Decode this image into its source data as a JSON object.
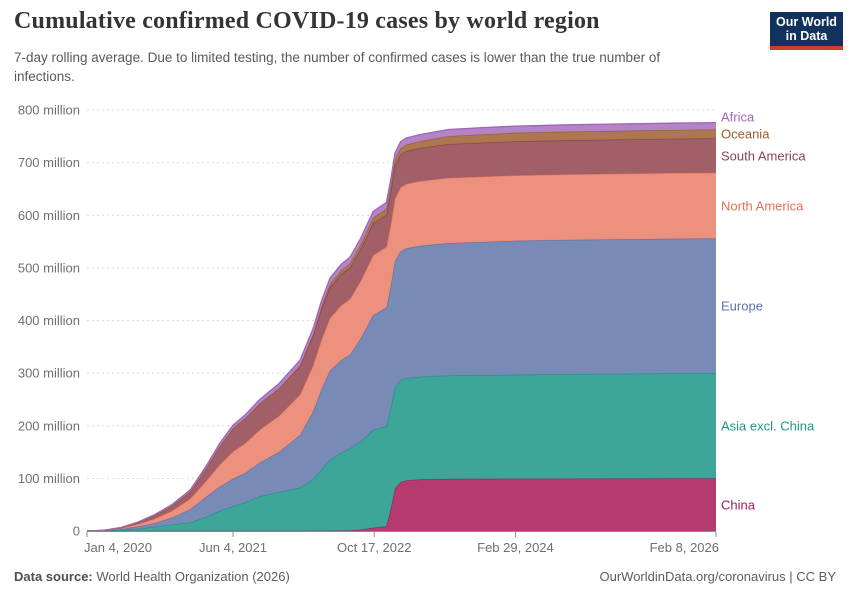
{
  "header": {
    "title": "Cumulative confirmed COVID-19 cases by world region",
    "subtitle": "7-day rolling average. Due to limited testing, the number of confirmed cases is lower than the true number of infections."
  },
  "logo": {
    "line1": "Our World",
    "line2": "in Data",
    "bg_color": "#12325e",
    "bar_color": "#cf3a31"
  },
  "footer": {
    "source_label": "Data source:",
    "source_text": " World Health Organization (2026)",
    "right_text": "OurWorldinData.org/coronavirus | CC BY"
  },
  "chart_data": {
    "type": "area",
    "stacked": true,
    "grid": "dashed-horizontal",
    "legend_position": "right",
    "ylim": [
      0,
      800
    ],
    "y_unit": "cases",
    "y_ticks": [
      {
        "value": 0,
        "label": "0"
      },
      {
        "value": 100,
        "label": "100 million"
      },
      {
        "value": 200,
        "label": "200 million"
      },
      {
        "value": 300,
        "label": "300 million"
      },
      {
        "value": 400,
        "label": "400 million"
      },
      {
        "value": 500,
        "label": "500 million"
      },
      {
        "value": 600,
        "label": "600 million"
      },
      {
        "value": 700,
        "label": "700 million"
      },
      {
        "value": 800,
        "label": "800 million"
      }
    ],
    "x_axis_note": "days since Jan 4, 2020",
    "x_max": 2227,
    "x_ticks": [
      {
        "day": 0,
        "label": "Jan 4, 2020"
      },
      {
        "day": 517,
        "label": "Jun 4, 2021"
      },
      {
        "day": 1017,
        "label": "Oct 17, 2022"
      },
      {
        "day": 1517,
        "label": "Feb 29, 2024"
      },
      {
        "day": 2227,
        "label": "Feb 8, 2026"
      }
    ],
    "x": [
      0,
      60,
      120,
      180,
      240,
      300,
      365,
      420,
      470,
      517,
      560,
      613,
      680,
      754,
      800,
      830,
      860,
      900,
      931,
      970,
      1013,
      1045,
      1060,
      1075,
      1090,
      1110,
      1130,
      1180,
      1280,
      1400,
      1517,
      1700,
      1900,
      2060,
      2227
    ],
    "values_unit": "million cumulative confirmed cases",
    "series": [
      {
        "name": "China",
        "fill": "#b23368",
        "line": "#9e2063",
        "values": [
          0,
          0.1,
          0.1,
          0.1,
          0.1,
          0.1,
          0.1,
          0.1,
          0.1,
          0.1,
          0.1,
          0.1,
          0.1,
          0.2,
          0.3,
          0.4,
          0.5,
          0.8,
          1,
          2.5,
          6,
          8,
          9,
          40,
          80,
          93,
          96,
          98,
          99,
          99.2,
          99.4,
          99.6,
          99.7,
          99.9,
          100
        ]
      },
      {
        "name": "Asia excl. China",
        "fill": "#35a294",
        "line": "#1f968a",
        "values": [
          0,
          0.3,
          1.5,
          4,
          8,
          12,
          16,
          26,
          38,
          47,
          54,
          66,
          74,
          82,
          98,
          116,
          134,
          148,
          156,
          168,
          186,
          189,
          190,
          191,
          192,
          193,
          194,
          195,
          196.5,
          197,
          197.5,
          198.5,
          199.2,
          199.6,
          200
        ]
      },
      {
        "name": "Europe",
        "fill": "#7386b3",
        "line": "#5a74ab",
        "values": [
          0,
          0.4,
          2,
          4.5,
          7,
          13,
          25,
          38,
          46,
          52,
          56,
          64,
          76,
          100,
          128,
          152,
          170,
          176,
          178,
          196,
          218,
          223,
          225,
          232,
          240,
          245,
          247,
          249,
          251.5,
          253,
          254.5,
          255,
          255.5,
          255.8,
          256
        ]
      },
      {
        "name": "North America",
        "fill": "#eb8d79",
        "line": "#e4705a",
        "values": [
          0,
          0.3,
          1.8,
          4.5,
          8.5,
          13,
          20,
          30,
          42,
          52,
          57,
          63,
          69,
          77,
          88,
          95,
          100,
          104,
          106,
          110,
          114,
          115,
          116,
          118,
          120,
          122,
          122.5,
          123,
          124,
          124.2,
          124.4,
          124.6,
          124.8,
          124.9,
          125
        ]
      },
      {
        "name": "South America",
        "fill": "#9d5a62",
        "line": "#8a4150",
        "values": [
          0,
          0.1,
          0.9,
          2.8,
          6,
          9.5,
          13.5,
          23,
          35,
          44,
          47,
          50,
          52,
          54,
          56,
          57.5,
          58.3,
          59,
          59.4,
          60,
          60.5,
          60.8,
          61,
          61.3,
          61.7,
          62,
          62.3,
          62.8,
          64.2,
          64.4,
          64.6,
          64.7,
          64.8,
          64.9,
          65
        ]
      },
      {
        "name": "Oceania",
        "fill": "#a9714a",
        "line": "#9c5e28",
        "values": [
          0,
          0.01,
          0.02,
          0.02,
          0.03,
          0.04,
          0.05,
          0.06,
          0.07,
          0.08,
          0.1,
          0.13,
          0.3,
          1.2,
          3,
          4.5,
          6,
          7.2,
          7.8,
          8.8,
          10.5,
          10.8,
          11,
          11.3,
          11.7,
          12.1,
          12.5,
          13,
          15,
          15.8,
          16.2,
          16.5,
          16.7,
          16.85,
          17
        ]
      },
      {
        "name": "Africa",
        "fill": "#b07fc4",
        "line": "#a264b8",
        "values": [
          0,
          0.05,
          0.4,
          0.9,
          1.6,
          2.3,
          3.2,
          4.5,
          5.3,
          6,
          6.5,
          7.5,
          8.8,
          10.2,
          10.9,
          11.2,
          11.5,
          11.7,
          11.85,
          12,
          12.15,
          12.25,
          12.3,
          12.35,
          12.4,
          12.45,
          12.5,
          12.6,
          12.8,
          12.85,
          12.9,
          12.92,
          12.96,
          12.98,
          13
        ]
      }
    ]
  },
  "style": {
    "grid_color": "#d7d7d7",
    "axis_color": "#8a8a8a",
    "tick_label_color": "#6f6f6f"
  }
}
